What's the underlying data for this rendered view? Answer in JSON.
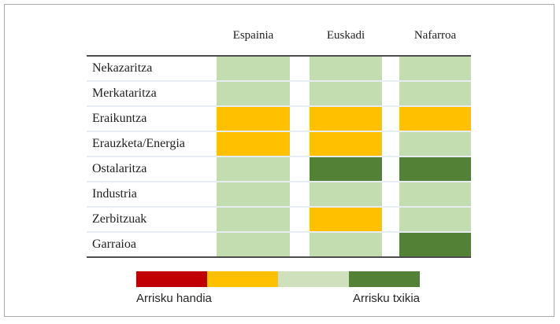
{
  "chart_data": {
    "type": "heatmap",
    "title": "",
    "columns": [
      "Espainia",
      "Euskadi",
      "Nafarroa"
    ],
    "rows": [
      "Nekazaritza",
      "Merkataritza",
      "Eraikuntza",
      "Erauzketa/Energia",
      "Ostalaritza",
      "Industria",
      "Zerbitzuak",
      "Garraioa"
    ],
    "values": [
      [
        2,
        2,
        2
      ],
      [
        2,
        2,
        2
      ],
      [
        3,
        3,
        3
      ],
      [
        3,
        3,
        2
      ],
      [
        2,
        1,
        1
      ],
      [
        2,
        2,
        2
      ],
      [
        2,
        3,
        2
      ],
      [
        2,
        2,
        1
      ]
    ],
    "value_scale": "risk level: 4 = Arrisku handia (highest), 3 = high-mid, 2 = low-mid, 1 = Arrisku txikia (lowest)",
    "cell_colors": {
      "1": "#538135",
      "2": "#c4ddb0",
      "3": "#ffc000",
      "4": "#c00000"
    },
    "legend_position": "bottom",
    "legend": {
      "left_label": "Arrisku handia",
      "right_label": "Arrisku txikia",
      "scale_colors": [
        "#c00000",
        "#ffc000",
        "#cfe0bd",
        "#538135"
      ]
    },
    "style": {
      "rule_color": "#4d4d4d",
      "row_separator_color": "#e7edf3",
      "frame_border_color": "#a9a9a9",
      "background": "#ffffff"
    }
  }
}
